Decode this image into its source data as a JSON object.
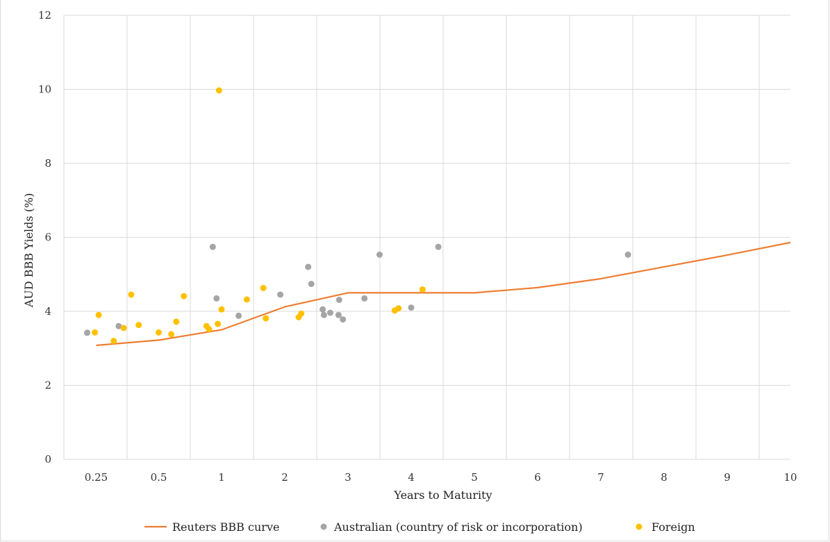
{
  "chart_data": {
    "type": "scatter",
    "title": "",
    "xlabel": "Years to Maturity",
    "ylabel": "AUD BBB Yields (%)",
    "ylim": [
      0,
      12
    ],
    "y_ticks": [
      "0",
      "2",
      "4",
      "6",
      "8",
      "10",
      "12"
    ],
    "x_tick_labels": [
      "0.25",
      "0.5",
      "1",
      "2",
      "3",
      "4",
      "5",
      "6",
      "7",
      "8",
      "9",
      "10"
    ],
    "x_scale": "categorical-maturity (0.25, 0.5, then annual to 10)",
    "grid": true,
    "legend_position": "bottom",
    "colors": {
      "curve": "#ED7D31",
      "australian": "#A5A5A5",
      "foreign": "#FFC000",
      "grid": "#D9D9D9"
    },
    "series": [
      {
        "name": "Reuters BBB curve",
        "kind": "line",
        "color": "#ED7D31",
        "x": [
          0.25,
          0.5,
          1,
          2,
          3,
          4,
          5,
          6,
          7,
          8,
          9,
          10
        ],
        "y": [
          3.08,
          3.22,
          3.5,
          4.12,
          4.5,
          4.5,
          4.5,
          4.64,
          4.88,
          5.2,
          5.52,
          5.86
        ]
      },
      {
        "name": "Australian (country of risk or incorporation)",
        "kind": "scatter",
        "color": "#A5A5A5",
        "points": [
          {
            "x": 0.18,
            "y": 3.42
          },
          {
            "x": 0.34,
            "y": 3.6
          },
          {
            "x": 0.93,
            "y": 5.74
          },
          {
            "x": 0.96,
            "y": 4.35
          },
          {
            "x": 1.27,
            "y": 3.88
          },
          {
            "x": 1.93,
            "y": 4.45
          },
          {
            "x": 2.37,
            "y": 5.2
          },
          {
            "x": 2.42,
            "y": 4.74
          },
          {
            "x": 2.6,
            "y": 4.05
          },
          {
            "x": 2.62,
            "y": 3.9
          },
          {
            "x": 2.72,
            "y": 3.96
          },
          {
            "x": 2.86,
            "y": 4.31
          },
          {
            "x": 2.85,
            "y": 3.9
          },
          {
            "x": 2.92,
            "y": 3.78
          },
          {
            "x": 3.26,
            "y": 4.35
          },
          {
            "x": 3.5,
            "y": 5.53
          },
          {
            "x": 4.0,
            "y": 4.1
          },
          {
            "x": 4.43,
            "y": 5.74
          },
          {
            "x": 7.43,
            "y": 5.53
          }
        ]
      },
      {
        "name": "Foreign",
        "kind": "scatter",
        "color": "#FFC000",
        "points": [
          {
            "x": 0.24,
            "y": 3.43
          },
          {
            "x": 0.26,
            "y": 3.9
          },
          {
            "x": 0.32,
            "y": 3.2
          },
          {
            "x": 0.36,
            "y": 3.55
          },
          {
            "x": 0.39,
            "y": 4.45
          },
          {
            "x": 0.42,
            "y": 3.63
          },
          {
            "x": 0.5,
            "y": 3.43
          },
          {
            "x": 0.6,
            "y": 3.38
          },
          {
            "x": 0.64,
            "y": 3.72
          },
          {
            "x": 0.7,
            "y": 4.41
          },
          {
            "x": 0.88,
            "y": 3.6
          },
          {
            "x": 0.9,
            "y": 3.52
          },
          {
            "x": 0.97,
            "y": 3.66
          },
          {
            "x": 0.98,
            "y": 9.97
          },
          {
            "x": 1.0,
            "y": 4.05
          },
          {
            "x": 1.4,
            "y": 4.32
          },
          {
            "x": 1.66,
            "y": 4.63
          },
          {
            "x": 1.7,
            "y": 3.81
          },
          {
            "x": 2.22,
            "y": 3.84
          },
          {
            "x": 2.26,
            "y": 3.94
          },
          {
            "x": 3.74,
            "y": 4.02
          },
          {
            "x": 3.8,
            "y": 4.08
          },
          {
            "x": 4.18,
            "y": 4.59
          }
        ]
      }
    ]
  }
}
